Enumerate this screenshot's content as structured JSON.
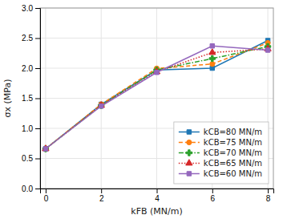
{
  "chart_data": {
    "type": "line",
    "x": [
      0,
      2,
      4,
      6,
      8
    ],
    "series": [
      {
        "name": "kCB=80 MN/m",
        "values": [
          0.66,
          1.4,
          1.97,
          2.0,
          2.46
        ],
        "marker": "square",
        "line_style": "solid"
      },
      {
        "name": "kCB=75 MN/m",
        "values": [
          0.66,
          1.4,
          1.995,
          2.07,
          2.42
        ],
        "marker": "circle",
        "line_style": "dashed"
      },
      {
        "name": "kCB=70 MN/m",
        "values": [
          0.66,
          1.38,
          1.97,
          2.16,
          2.36
        ],
        "marker": "plus",
        "line_style": "dashdot"
      },
      {
        "name": "kCB=65 MN/m",
        "values": [
          0.66,
          1.38,
          1.94,
          2.26,
          2.32
        ],
        "marker": "triangle",
        "line_style": "dotted"
      },
      {
        "name": "kCB=60 MN/m",
        "values": [
          0.66,
          1.37,
          1.93,
          2.37,
          2.3
        ],
        "marker": "square",
        "line_style": "solid"
      }
    ],
    "x_label": "kFB (MN/m)",
    "y_label": "σx (MPa)",
    "xlim": [
      -0.2,
      8.2
    ],
    "ylim": [
      0,
      3
    ],
    "xticks": [
      0,
      2,
      4,
      6,
      8
    ],
    "yticks": [
      {
        "value": 0,
        "label": "0.0"
      },
      0.5,
      {
        "value": 1.0,
        "label": "1.0"
      },
      1.5,
      {
        "value": 2.0,
        "label": "2.0"
      },
      2.5,
      {
        "value": 3.0,
        "label": "3.0"
      }
    ],
    "grid": true,
    "legend": "lower right"
  }
}
